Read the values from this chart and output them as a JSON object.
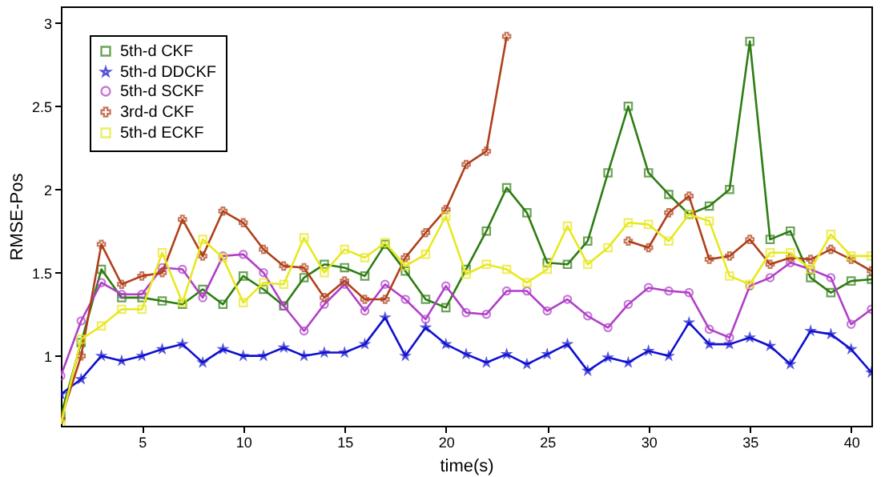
{
  "chart_data": {
    "type": "line",
    "xlabel": "time(s)",
    "ylabel": "RMSE-Pos",
    "x": [
      1,
      2,
      3,
      4,
      5,
      6,
      7,
      8,
      9,
      10,
      11,
      12,
      13,
      14,
      15,
      16,
      17,
      18,
      19,
      20,
      21,
      22,
      23,
      24,
      25,
      26,
      27,
      28,
      29,
      30,
      31,
      32,
      33,
      34,
      35,
      36,
      37,
      38,
      39,
      40,
      41
    ],
    "series": [
      {
        "name": "5th-d CKF",
        "color": "#2e7d12",
        "marker": "square",
        "values": [
          0.64,
          1.08,
          1.52,
          1.35,
          1.35,
          1.33,
          1.31,
          1.4,
          1.31,
          1.48,
          1.4,
          1.3,
          1.47,
          1.55,
          1.53,
          1.48,
          1.67,
          1.51,
          1.34,
          1.29,
          1.52,
          1.75,
          2.01,
          1.86,
          1.56,
          1.55,
          1.69,
          2.1,
          2.5,
          2.1,
          1.97,
          1.85,
          1.9,
          2.0,
          2.89,
          1.7,
          1.75,
          1.47,
          1.38,
          1.45,
          1.46
        ]
      },
      {
        "name": "5th-d DDCKF",
        "color": "#1010d0",
        "marker": "star",
        "values": [
          0.77,
          0.86,
          1.0,
          0.97,
          1.0,
          1.04,
          1.07,
          0.96,
          1.04,
          1.0,
          1.0,
          1.05,
          1.0,
          1.02,
          1.02,
          1.07,
          1.23,
          1.0,
          1.17,
          1.07,
          1.01,
          0.96,
          1.01,
          0.95,
          1.01,
          1.07,
          0.91,
          0.99,
          0.96,
          1.03,
          1.0,
          1.2,
          1.07,
          1.07,
          1.11,
          1.06,
          0.95,
          1.15,
          1.13,
          1.04,
          0.9
        ]
      },
      {
        "name": "5th-d SCKF",
        "color": "#b040c8",
        "marker": "circle",
        "values": [
          0.88,
          1.21,
          1.44,
          1.37,
          1.37,
          1.53,
          1.52,
          1.35,
          1.6,
          1.61,
          1.5,
          1.3,
          1.15,
          1.31,
          1.43,
          1.27,
          1.43,
          1.34,
          1.22,
          1.42,
          1.26,
          1.25,
          1.39,
          1.39,
          1.27,
          1.34,
          1.24,
          1.17,
          1.31,
          1.41,
          1.39,
          1.38,
          1.16,
          1.11,
          1.42,
          1.47,
          1.56,
          1.52,
          1.47,
          1.19,
          1.28
        ]
      },
      {
        "name": "3rd-d CKF",
        "color": "#b0401a",
        "marker": "cross",
        "values": [
          0.62,
          1.0,
          1.67,
          1.43,
          1.48,
          1.5,
          1.82,
          1.6,
          1.87,
          1.8,
          1.64,
          1.54,
          1.53,
          1.35,
          1.45,
          1.34,
          1.34,
          1.59,
          1.74,
          1.88,
          2.15,
          2.23,
          2.92,
          null,
          null,
          null,
          null,
          null,
          1.69,
          1.65,
          1.86,
          1.96,
          1.58,
          1.6,
          1.7,
          1.55,
          1.59,
          1.58,
          1.64,
          1.58,
          1.51
        ]
      },
      {
        "name": "5th-d ECKF",
        "color": "#e8e820",
        "marker": "square",
        "values": [
          0.59,
          1.1,
          1.18,
          1.28,
          1.28,
          1.62,
          1.32,
          1.7,
          1.59,
          1.32,
          1.44,
          1.43,
          1.71,
          1.5,
          1.64,
          1.59,
          1.68,
          1.54,
          1.61,
          1.84,
          1.49,
          1.55,
          1.52,
          1.44,
          1.52,
          1.78,
          1.55,
          1.65,
          1.8,
          1.79,
          1.69,
          1.85,
          1.81,
          1.48,
          1.43,
          1.62,
          1.62,
          1.52,
          1.73,
          1.6,
          1.6
        ]
      }
    ],
    "xlim": [
      1,
      41
    ],
    "ylim": [
      0.58,
      3.1
    ],
    "xticks": [
      5,
      10,
      15,
      20,
      25,
      30,
      35,
      40
    ],
    "yticks": [
      1,
      1.5,
      2,
      2.5,
      3
    ],
    "grid": false,
    "legend": "top left",
    "line_style": "solid"
  }
}
